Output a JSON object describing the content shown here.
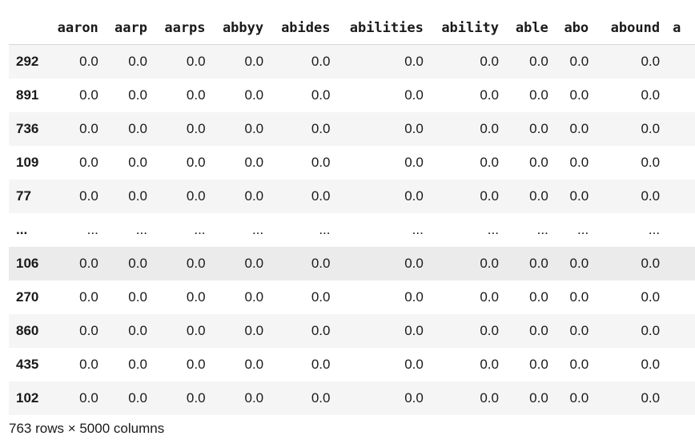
{
  "table": {
    "columns": [
      "aaron",
      "aarp",
      "aarps",
      "abbyy",
      "abides",
      "abilities",
      "ability",
      "able",
      "abo",
      "abound",
      "a"
    ],
    "rows": [
      {
        "index": "292",
        "values": [
          "0.0",
          "0.0",
          "0.0",
          "0.0",
          "0.0",
          "0.0",
          "0.0",
          "0.0",
          "0.0",
          "0.0",
          ""
        ]
      },
      {
        "index": "891",
        "values": [
          "0.0",
          "0.0",
          "0.0",
          "0.0",
          "0.0",
          "0.0",
          "0.0",
          "0.0",
          "0.0",
          "0.0",
          ""
        ]
      },
      {
        "index": "736",
        "values": [
          "0.0",
          "0.0",
          "0.0",
          "0.0",
          "0.0",
          "0.0",
          "0.0",
          "0.0",
          "0.0",
          "0.0",
          ""
        ]
      },
      {
        "index": "109",
        "values": [
          "0.0",
          "0.0",
          "0.0",
          "0.0",
          "0.0",
          "0.0",
          "0.0",
          "0.0",
          "0.0",
          "0.0",
          ""
        ]
      },
      {
        "index": "77",
        "values": [
          "0.0",
          "0.0",
          "0.0",
          "0.0",
          "0.0",
          "0.0",
          "0.0",
          "0.0",
          "0.0",
          "0.0",
          ""
        ]
      },
      {
        "index": "...",
        "values": [
          "...",
          "...",
          "...",
          "...",
          "...",
          "...",
          "...",
          "...",
          "...",
          "...",
          ""
        ]
      },
      {
        "index": "106",
        "values": [
          "0.0",
          "0.0",
          "0.0",
          "0.0",
          "0.0",
          "0.0",
          "0.0",
          "0.0",
          "0.0",
          "0.0",
          ""
        ]
      },
      {
        "index": "270",
        "values": [
          "0.0",
          "0.0",
          "0.0",
          "0.0",
          "0.0",
          "0.0",
          "0.0",
          "0.0",
          "0.0",
          "0.0",
          ""
        ]
      },
      {
        "index": "860",
        "values": [
          "0.0",
          "0.0",
          "0.0",
          "0.0",
          "0.0",
          "0.0",
          "0.0",
          "0.0",
          "0.0",
          "0.0",
          ""
        ]
      },
      {
        "index": "435",
        "values": [
          "0.0",
          "0.0",
          "0.0",
          "0.0",
          "0.0",
          "0.0",
          "0.0",
          "0.0",
          "0.0",
          "0.0",
          ""
        ]
      },
      {
        "index": "102",
        "values": [
          "0.0",
          "0.0",
          "0.0",
          "0.0",
          "0.0",
          "0.0",
          "0.0",
          "0.0",
          "0.0",
          "0.0",
          ""
        ]
      }
    ]
  },
  "footer": {
    "shape_text": "763 rows × 5000 columns"
  }
}
